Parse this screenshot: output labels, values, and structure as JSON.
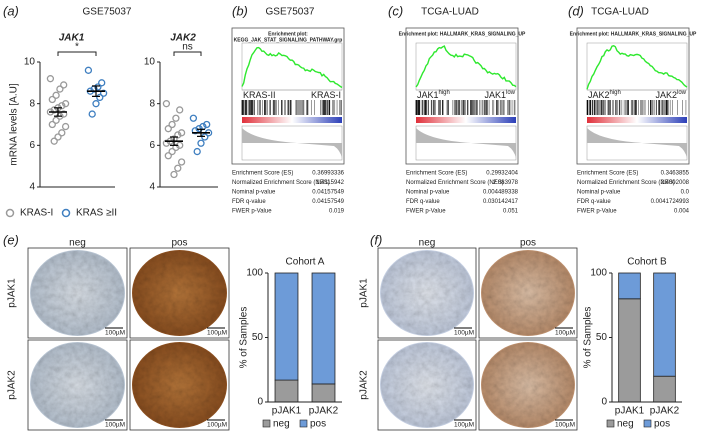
{
  "panel_labels": [
    "(a)",
    "(b)",
    "(c)",
    "(d)",
    "(e)",
    "(f)"
  ],
  "chart_data": [
    {
      "type": "strip",
      "dataset": "GSE75037",
      "title": "JAK1",
      "ylabel": "mRNA levels [A.U]",
      "annotation": "*",
      "ylim": [
        4,
        10
      ],
      "yticks": [
        4,
        6,
        8,
        10
      ],
      "series": [
        {
          "name": "KRAS-I",
          "color": "#9a9a9a",
          "mean": 7.6,
          "sem": 0.2,
          "values": [
            9.2,
            8.9,
            8.7,
            8.4,
            8.2,
            8.0,
            7.9,
            7.8,
            7.7,
            7.6,
            7.5,
            7.4,
            7.2,
            7.0,
            6.9,
            6.6,
            6.4,
            6.2
          ]
        },
        {
          "name": "KRAS ≥II",
          "color": "#3f7fc0",
          "mean": 8.6,
          "sem": 0.25,
          "values": [
            9.6,
            9.0,
            8.8,
            8.7,
            8.6,
            8.5,
            8.3,
            8.0,
            7.5
          ]
        }
      ]
    },
    {
      "type": "strip",
      "title": "JAK2",
      "annotation": "ns",
      "ylim": [
        4,
        10
      ],
      "yticks": [
        4,
        6,
        8,
        10
      ],
      "series": [
        {
          "name": "KRAS-I",
          "color": "#9a9a9a",
          "mean": 6.2,
          "sem": 0.2,
          "values": [
            8.0,
            7.7,
            7.3,
            7.0,
            6.8,
            6.6,
            6.5,
            6.3,
            6.2,
            6.1,
            6.0,
            5.9,
            5.7,
            5.5,
            5.2,
            4.9,
            4.6
          ]
        },
        {
          "name": "KRAS ≥II",
          "color": "#3f7fc0",
          "mean": 6.6,
          "sem": 0.17,
          "values": [
            7.3,
            7.0,
            6.9,
            6.8,
            6.7,
            6.6,
            6.4,
            6.1,
            5.7
          ]
        }
      ]
    },
    {
      "type": "bar",
      "stacked": true,
      "title": "Cohort A",
      "ylabel": "% of Samples",
      "categories": [
        "pJAK1",
        "pJAK2"
      ],
      "ylim": [
        0,
        100
      ],
      "yticks": [
        0,
        50,
        100
      ],
      "series": [
        {
          "name": "neg",
          "color": "#9b9b9b",
          "values": [
            17,
            14
          ]
        },
        {
          "name": "pos",
          "color": "#6d9bd8",
          "values": [
            83,
            86
          ]
        }
      ]
    },
    {
      "type": "bar",
      "stacked": true,
      "title": "Cohort B",
      "ylabel": "% of Samples",
      "categories": [
        "pJAK1",
        "pJAK2"
      ],
      "ylim": [
        0,
        100
      ],
      "yticks": [
        0,
        50,
        100
      ],
      "series": [
        {
          "name": "neg",
          "color": "#9b9b9b",
          "values": [
            80,
            20
          ]
        },
        {
          "name": "pos",
          "color": "#6d9bd8",
          "values": [
            20,
            80
          ]
        }
      ]
    }
  ],
  "gsea": [
    {
      "header": "GSE75037",
      "plot_title": "Enrichment plot:",
      "gene_set": "KEGG_JAK_STAT_SIGNALING_PATHWAY.grp",
      "left_label": "KRAS-II",
      "right_label": "KRAS-I",
      "stats": [
        [
          "Enrichment Score (ES)",
          "0.36993336"
        ],
        [
          "Normalized Enrichment Score (NES)",
          "1.4115942"
        ],
        [
          "Nominal p-value",
          "0.04157549"
        ],
        [
          "FDR q-value",
          "0.04157549"
        ],
        [
          "FWER p-Value",
          "0.019"
        ]
      ]
    },
    {
      "header": "TCGA-LUAD",
      "plot_title": "Enrichment plot: HALLMARK_KRAS_SIGNALING_UP",
      "left_label": "JAK1",
      "left_sup": "high",
      "right_label": "JAK1",
      "right_sup": "low",
      "stats": [
        [
          "Enrichment Score (ES)",
          "0.29932404"
        ],
        [
          "Normalized Enrichment Score (NES)",
          "2.083978"
        ],
        [
          "Nominal p-value",
          "0.004489338"
        ],
        [
          "FDR q-value",
          "0.030142417"
        ],
        [
          "FWER p-Value",
          "0.051"
        ]
      ]
    },
    {
      "header": "TCGA-LUAD",
      "plot_title": "Enrichment plot: HALLMARK_KRAS_SIGNALING_UP",
      "left_label": "JAK2",
      "left_sup": "high",
      "right_label": "JAK2",
      "right_sup": "low",
      "stats": [
        [
          "Enrichment Score (ES)",
          "0.3463855"
        ],
        [
          "Normalized Enrichment Score (NES)",
          "2.4002008"
        ],
        [
          "Nominal p-value",
          "0.0"
        ],
        [
          "FDR q-value",
          "0.0041724993"
        ],
        [
          "FWER p-Value",
          "0.004"
        ]
      ]
    }
  ],
  "ihc": [
    {
      "columns": [
        "neg",
        "pos"
      ],
      "rows": [
        "pJAK1",
        "pJAK2"
      ],
      "scale_bar": "100µM"
    },
    {
      "columns": [
        "neg",
        "pos"
      ],
      "rows": [
        "pJAK1",
        "pJAK2"
      ],
      "scale_bar": "100µM"
    }
  ]
}
